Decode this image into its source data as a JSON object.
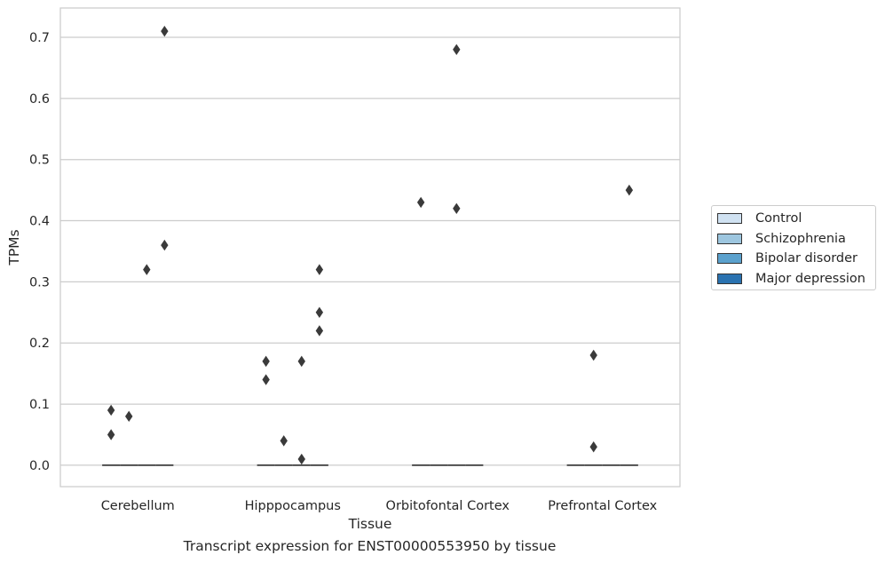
{
  "chart_data": {
    "type": "boxplot",
    "title": "Transcript expression for ENST00000553950 by tissue",
    "xlabel": "Tissue",
    "ylabel": "TPMs",
    "categories": [
      "Cerebellum",
      "Hipppocampus",
      "Orbitofontal Cortex",
      "Prefrontal Cortex"
    ],
    "ylim": [
      -0.035,
      0.748
    ],
    "yticks": [
      0.0,
      0.1,
      0.2,
      0.3,
      0.4,
      0.5,
      0.6,
      0.7
    ],
    "ytick_labels": [
      "0.0",
      "0.1",
      "0.2",
      "0.3",
      "0.4",
      "0.5",
      "0.6",
      "0.7"
    ],
    "grid": true,
    "legend_position": "right",
    "series": [
      {
        "name": "Control",
        "color": "#d0e2f2",
        "median": [
          0,
          0,
          0,
          0
        ],
        "outliers": [
          [
            0.09,
            0.05
          ],
          [
            0.17,
            0.14
          ],
          [
            0.43
          ],
          []
        ]
      },
      {
        "name": "Schizophrenia",
        "color": "#9dc6df",
        "median": [
          0,
          0,
          0,
          0
        ],
        "outliers": [
          [
            0.08
          ],
          [
            0.04
          ],
          [],
          [
            0.18,
            0.03
          ]
        ]
      },
      {
        "name": "Bipolar disorder",
        "color": "#5ba1cd",
        "median": [
          0,
          0,
          0,
          0
        ],
        "outliers": [
          [
            0.32
          ],
          [
            0.17,
            0.01
          ],
          [
            0.68,
            0.42
          ],
          []
        ]
      },
      {
        "name": "Major depression",
        "color": "#2a72b0",
        "median": [
          0,
          0,
          0,
          0
        ],
        "outliers": [
          [
            0.71,
            0.36
          ],
          [
            0.32,
            0.25,
            0.22
          ],
          [],
          [
            0.45
          ]
        ]
      }
    ]
  }
}
